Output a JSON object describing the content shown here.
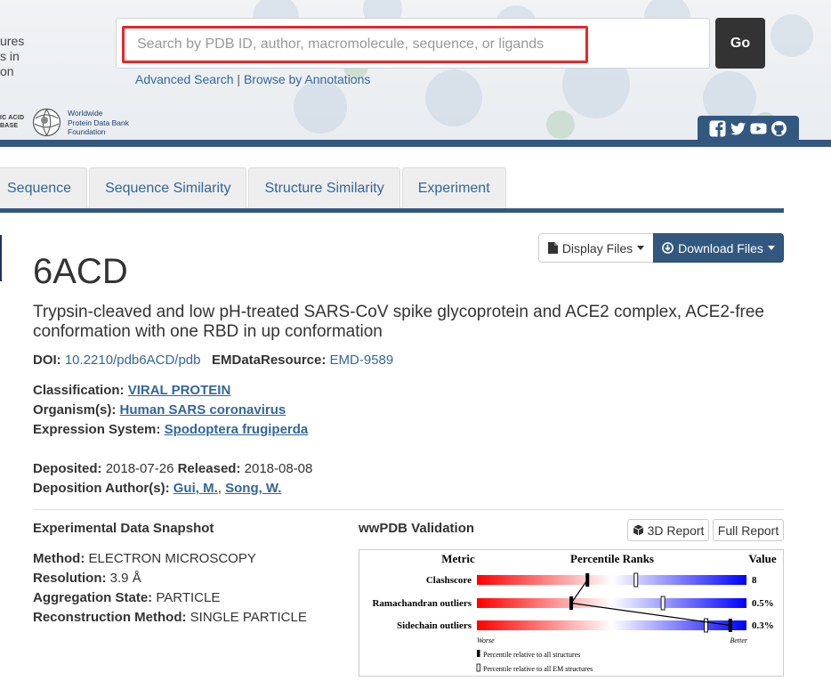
{
  "header": {
    "left_cut_lines": [
      "ures",
      "s in",
      "on"
    ],
    "ndb_lines": [
      "IC ACID",
      "BASE"
    ],
    "wwpdb_lines": [
      "Worldwide",
      "Protein Data Bank",
      "Foundation"
    ],
    "search_placeholder": "Search by PDB ID, author, macromolecule, sequence, or ligands",
    "go_label": "Go",
    "advanced_search": "Advanced Search",
    "separator": "|",
    "browse_annotations": "Browse by Annotations"
  },
  "tabs": [
    "Sequence",
    "Sequence Similarity",
    "Structure Similarity",
    "Experiment"
  ],
  "buttons": {
    "display_files": "Display Files",
    "download_files": "Download Files"
  },
  "entry": {
    "id": "6ACD",
    "title": "Trypsin-cleaved and low pH-treated SARS-CoV spike glycoprotein and ACE2 complex, ACE2-free conformation with one RBD in up conformation",
    "doi_label": "DOI:",
    "doi": "10.2210/pdb6ACD/pdb",
    "emdb_label": "EMDataResource:",
    "emdb": "EMD-9589",
    "classification_label": "Classification:",
    "classification": "VIRAL PROTEIN",
    "organism_label": "Organism(s):",
    "organism": "Human SARS coronavirus",
    "expression_label": "Expression System:",
    "expression": "Spodoptera frugiperda",
    "deposited_label": "Deposited:",
    "deposited": "2018-07-26",
    "released_label": "Released:",
    "released": "2018-08-08",
    "authors_label": "Deposition Author(s):",
    "author1": "Gui, M.",
    "author_sep": ",",
    "author2": "Song, W."
  },
  "experimental": {
    "heading": "Experimental Data Snapshot",
    "method_label": "Method:",
    "method": "ELECTRON MICROSCOPY",
    "resolution_label": "Resolution:",
    "resolution": "3.9 Å",
    "aggregation_label": "Aggregation State:",
    "aggregation": "PARTICLE",
    "reconstruction_label": "Reconstruction Method:",
    "reconstruction": "SINGLE PARTICLE"
  },
  "validation": {
    "heading": "wwPDB Validation",
    "report_3d": "3D Report",
    "full_report": "Full Report",
    "col_metric": "Metric",
    "col_percentile": "Percentile Ranks",
    "col_value": "Value",
    "rows": [
      {
        "metric": "Clashscore",
        "value": "8",
        "all_percentile": 0.41,
        "em_percentile": 0.59
      },
      {
        "metric": "Ramachandran outliers",
        "value": "0.5%",
        "all_percentile": 0.35,
        "em_percentile": 0.69
      },
      {
        "metric": "Sidechain outliers",
        "value": "0.3%",
        "all_percentile": 0.94,
        "em_percentile": 0.85
      }
    ],
    "worse": "Worse",
    "better": "Better",
    "legend_all": "Percentile relative to all structures",
    "legend_em": "Percentile relative to all EM structures"
  }
}
